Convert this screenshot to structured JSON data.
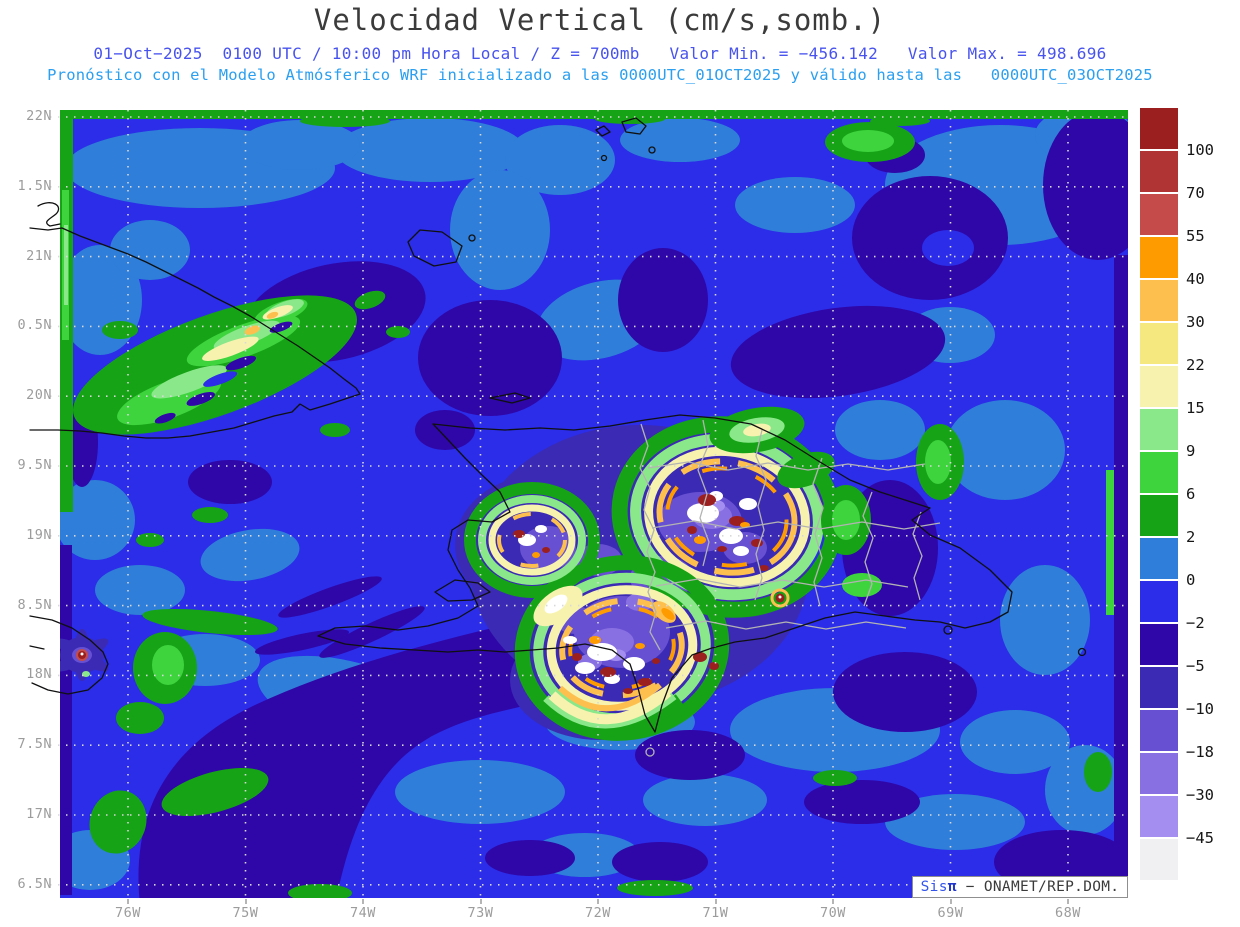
{
  "header": {
    "title": "Velocidad Vertical (cm/s,somb.)",
    "subtitle1": "01−Oct−2025  0100 UTC / 10:00 pm Hora Local / Z = 700mb   Valor Min. = −456.142   Valor Max. = 498.696",
    "subtitle2": "Pronóstico con el Modelo Atmósferico WRF inicializado a las 0000UTC_01OCT2025 y válido hasta las   0000UTC_03OCT2025"
  },
  "chart_data": {
    "type": "heatmap",
    "variable": "Velocidad Vertical",
    "units": "cm/s,somb.",
    "pressure_level": "700mb",
    "valid_time_utc": "01-Oct-2025 0100 UTC",
    "valid_time_local": "10:00 pm Hora Local",
    "model": "WRF",
    "init_time": "0000UTC_01OCT2025",
    "end_time": "0000UTC_03OCT2025",
    "value_min": -456.142,
    "value_max": 498.696,
    "grid": "on (dotted)",
    "legend_position": "right colorbar",
    "y_tick_labels": [
      "22N",
      "1.5N",
      "21N",
      "0.5N",
      "20N",
      "9.5N",
      "19N",
      "8.5N",
      "18N",
      "7.5N",
      "17N",
      "6.5N"
    ],
    "x_tick_labels": [
      "76W",
      "75W",
      "74W",
      "73W",
      "72W",
      "71W",
      "70W",
      "69W",
      "68W"
    ],
    "colorbar_boundary_labels": [
      "100",
      "70",
      "55",
      "40",
      "30",
      "22",
      "15",
      "9",
      "6",
      "2",
      "0",
      "−2",
      "−5",
      "−10",
      "−18",
      "−30",
      "−45"
    ],
    "colorbar_colors_top_to_bottom": [
      "#9b1f1f",
      "#b13434",
      "#c54b4b",
      "#fe9b01",
      "#fdc04f",
      "#f5e87e",
      "#f7f3ae",
      "#8ae88a",
      "#3ed43e",
      "#16a316",
      "#2f7ed9",
      "#2b2de8",
      "#2f06a8",
      "#3b2ab4",
      "#6850d2",
      "#8970e2",
      "#a48ef0",
      "#f0f0f2"
    ]
  },
  "badge": {
    "brand": "Sis",
    "pi": "π",
    "rest": " − ONAMET/REP.DOM."
  }
}
